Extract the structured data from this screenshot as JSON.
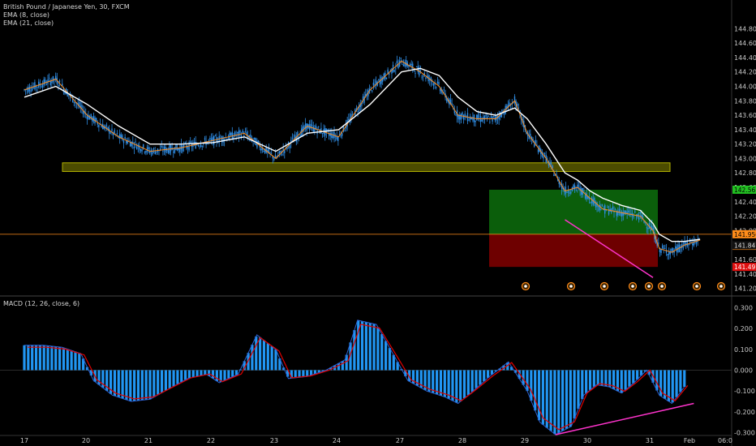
{
  "header": {
    "symbol_line": "British Pound / Japanese Yen, 30, FXCM",
    "ema_fast_label": "EMA (8, close)",
    "ema_slow_label": "EMA (21, close)",
    "macd_label": "MACD (12, 26, close, 6)"
  },
  "colors": {
    "background": "#000000",
    "candle": "#2f8de4",
    "ema_fast": "#ff8c1a",
    "ema_slow": "#ffffff",
    "zone": "#8a8a00",
    "trend_line": "#ff33cc",
    "target_box": "#0b5e0b",
    "stop_box": "#6e0000",
    "entry_line": "#ff8c1a",
    "macd_hist": "#2196f3",
    "macd_signal": "#e00000",
    "macd_line": "#2f5fd0"
  },
  "price_tags": {
    "target": "142.567",
    "entry": "141.950",
    "countdown": "00:26",
    "last": "141.847",
    "stop": "141.497"
  },
  "chart_data": [
    {
      "type": "candlestick",
      "title": "British Pound / Japanese Yen, 30, FXCM",
      "x_tick_labels": [
        "17",
        "20",
        "21",
        "22",
        "23",
        "24",
        "27",
        "28",
        "29",
        "30",
        "31",
        "Feb",
        "06:0"
      ],
      "y_tick_labels": [
        "141.200",
        "141.400",
        "141.600",
        "141.800",
        "142.000",
        "142.200",
        "142.400",
        "142.600",
        "142.800",
        "143.000",
        "143.200",
        "143.400",
        "143.600",
        "143.800",
        "144.000",
        "144.200",
        "144.400",
        "144.600",
        "144.800"
      ],
      "ylim": [
        141.15,
        144.95
      ],
      "series": [
        {
          "name": "EMA (8, close)",
          "x_days": [
            16.0,
            16.5,
            17.0,
            17.5,
            18.0,
            18.5,
            19.0,
            19.5,
            20.0,
            20.5,
            21.0,
            21.5,
            22.0,
            22.3,
            22.6,
            22.9,
            23.2,
            23.5,
            23.8,
            24.0,
            24.3,
            24.6,
            24.8,
            25.0,
            25.2,
            25.5,
            25.8,
            26.0,
            26.1,
            26.3,
            26.5,
            26.75
          ],
          "values": [
            143.95,
            144.1,
            143.6,
            143.3,
            143.1,
            143.15,
            143.25,
            143.35,
            143.0,
            143.45,
            143.3,
            143.95,
            144.35,
            144.2,
            144.0,
            143.6,
            143.55,
            143.55,
            143.8,
            143.35,
            143.0,
            142.55,
            142.6,
            142.45,
            142.3,
            142.25,
            142.2,
            142.0,
            141.75,
            141.7,
            141.8,
            141.87
          ]
        },
        {
          "name": "EMA (21, close)",
          "x_days": [
            16.0,
            16.5,
            17.0,
            17.5,
            18.0,
            18.5,
            19.0,
            19.5,
            20.0,
            20.5,
            21.0,
            21.5,
            22.0,
            22.3,
            22.6,
            22.9,
            23.2,
            23.5,
            23.8,
            24.0,
            24.3,
            24.6,
            24.8,
            25.0,
            25.2,
            25.5,
            25.8,
            26.0,
            26.1,
            26.3,
            26.5,
            26.75
          ],
          "values": [
            143.85,
            144.0,
            143.75,
            143.45,
            143.2,
            143.2,
            143.22,
            143.3,
            143.1,
            143.35,
            143.4,
            143.75,
            144.2,
            144.25,
            144.15,
            143.85,
            143.65,
            143.6,
            143.7,
            143.55,
            143.2,
            142.8,
            142.7,
            142.55,
            142.45,
            142.35,
            142.28,
            142.1,
            141.95,
            141.85,
            141.85,
            141.88
          ]
        }
      ],
      "support_zone": [
        142.82,
        142.94
      ],
      "trade_box": {
        "entry": 141.95,
        "target": 142.567,
        "stop": 141.497
      },
      "trend_line": {
        "from": [
          24.6,
          142.15
        ],
        "to": [
          26.0,
          141.35
        ]
      }
    },
    {
      "type": "bar",
      "title": "MACD (12, 26, close, 6)",
      "y_tick_labels": [
        "0.300",
        "0.200",
        "0.100",
        "0.000",
        "-0.100",
        "-0.200",
        "-0.300"
      ],
      "ylim": [
        -0.345,
        0.345
      ],
      "series": [
        {
          "name": "MACD",
          "x_days": [
            16.0,
            16.3,
            16.6,
            16.9,
            17.1,
            17.4,
            17.7,
            18.0,
            18.3,
            18.6,
            18.9,
            19.1,
            19.4,
            19.7,
            20.0,
            20.2,
            20.5,
            20.8,
            21.1,
            21.3,
            21.6,
            21.9,
            22.1,
            22.4,
            22.7,
            22.9,
            23.1,
            23.4,
            23.7,
            24.0,
            24.2,
            24.45,
            24.7,
            24.9,
            25.1,
            25.3,
            25.5,
            25.7,
            25.9,
            26.1,
            26.3,
            26.5
          ],
          "values": [
            0.12,
            0.12,
            0.11,
            0.08,
            -0.05,
            -0.12,
            -0.15,
            -0.14,
            -0.09,
            -0.04,
            -0.02,
            -0.06,
            -0.02,
            0.17,
            0.1,
            -0.04,
            -0.03,
            0.0,
            0.05,
            0.24,
            0.22,
            0.06,
            -0.05,
            -0.1,
            -0.13,
            -0.16,
            -0.11,
            -0.03,
            0.04,
            -0.1,
            -0.25,
            -0.31,
            -0.27,
            -0.12,
            -0.07,
            -0.08,
            -0.11,
            -0.06,
            0.0,
            -0.12,
            -0.16,
            -0.08
          ]
        }
      ],
      "trend_line": {
        "from": [
          24.45,
          -0.31
        ],
        "to": [
          26.65,
          -0.16
        ]
      }
    }
  ]
}
